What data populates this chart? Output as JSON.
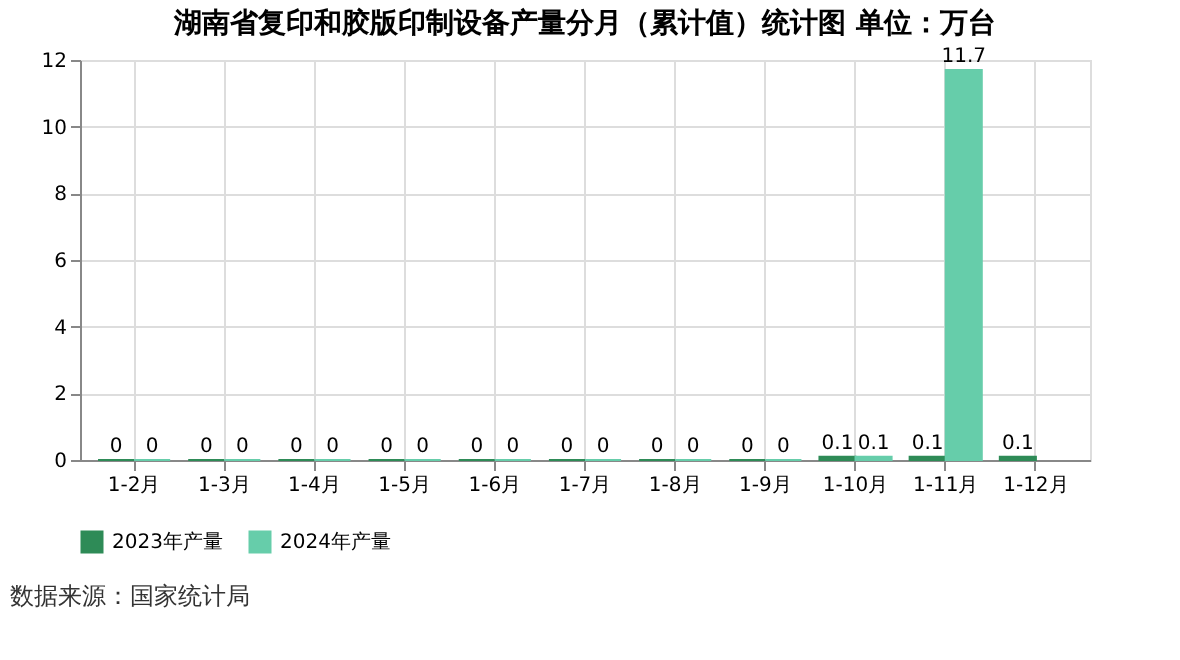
{
  "chart_data": {
    "type": "bar",
    "title": "湖南省复印和胶版印制设备产量分月（累计值）统计图 单位：万台",
    "categories": [
      "1-2月",
      "1-3月",
      "1-4月",
      "1-5月",
      "1-6月",
      "1-7月",
      "1-8月",
      "1-9月",
      "1-10月",
      "1-11月",
      "1-12月"
    ],
    "series": [
      {
        "name": "2023年产量",
        "color": "#2e8b57",
        "values": [
          0,
          0,
          0,
          0,
          0,
          0,
          0,
          0,
          0.1,
          0.1,
          0.1
        ]
      },
      {
        "name": "2024年产量",
        "color": "#66cdaa",
        "values": [
          0,
          0,
          0,
          0,
          0,
          0,
          0,
          0,
          0.1,
          11.7,
          null
        ]
      }
    ],
    "ylim": [
      0,
      12
    ],
    "yticks": [
      0,
      2,
      4,
      6,
      8,
      10,
      12
    ],
    "grid": true,
    "legend": "bottom",
    "data_labels": true,
    "annotations": [
      "数据来源：国家统计局"
    ]
  }
}
